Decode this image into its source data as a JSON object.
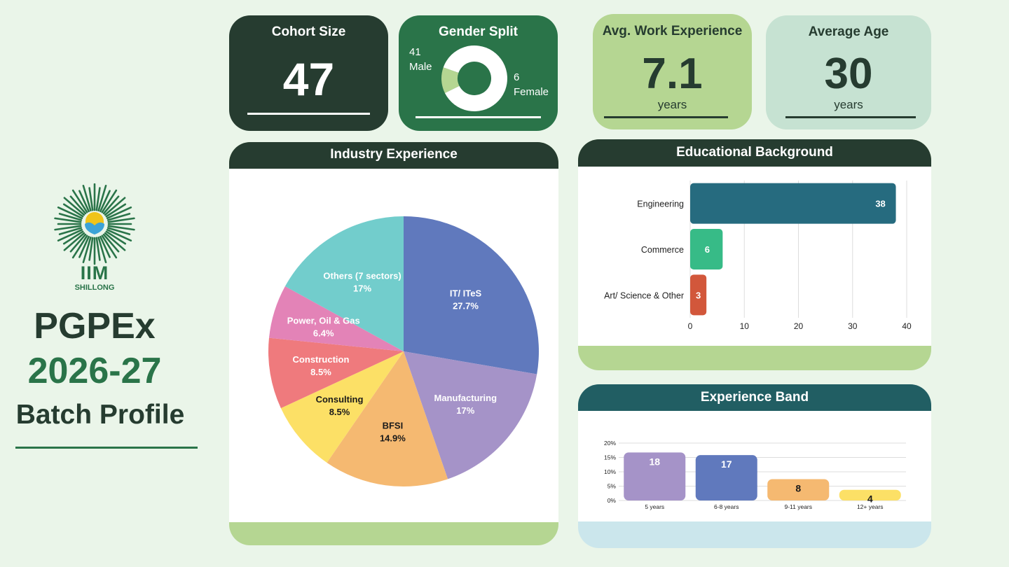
{
  "logo": {
    "name": "IIM",
    "sub": "SHILLONG"
  },
  "program": {
    "name": "PGPEx",
    "year": "2026-27",
    "subtitle": "Batch Profile"
  },
  "cards": {
    "cohort": {
      "title": "Cohort Size",
      "value": "47"
    },
    "gender": {
      "title": "Gender Split",
      "male_count": "41",
      "male_label": "Male",
      "female_count": "6",
      "female_label": "Female"
    },
    "work": {
      "title": "Avg. Work Experience",
      "value": "7.1",
      "unit": "years"
    },
    "age": {
      "title": "Average Age",
      "value": "30",
      "unit": "years"
    }
  },
  "colors": {
    "dark": "#263c30",
    "green": "#2a7449",
    "lime": "#b5d692",
    "mint": "#c6e2d2",
    "teal_dark": "#215e63",
    "bg": "#eaf5e9"
  },
  "chart_data": [
    {
      "type": "pie",
      "id": "gender",
      "categories": [
        "Male",
        "Female"
      ],
      "values": [
        41,
        6
      ],
      "colors": [
        "#ffffff",
        "#b5d692"
      ]
    },
    {
      "type": "pie",
      "id": "industry",
      "title": "Industry Experience",
      "categories": [
        "IT/ ITeS",
        "Manufacturing",
        "BFSI",
        "Consulting",
        "Construction",
        "Power, Oil & Gas",
        "Others (7 sectors)"
      ],
      "values": [
        27.7,
        17,
        14.9,
        8.5,
        8.5,
        6.4,
        17
      ],
      "labels": [
        "27.7%",
        "17%",
        "14.9%",
        "8.5%",
        "8.5%",
        "6.4%",
        "17%"
      ],
      "colors": [
        "#6079bd",
        "#a593c8",
        "#f5b971",
        "#fce066",
        "#ef7a7d",
        "#e383b7",
        "#72cdcc"
      ],
      "label_colors": [
        "#ffffff",
        "#ffffff",
        "#1a1a1a",
        "#1a1a1a",
        "#ffffff",
        "#ffffff",
        "#ffffff"
      ]
    },
    {
      "type": "bar",
      "orientation": "horizontal",
      "id": "education",
      "title": "Educational Background",
      "categories": [
        "Engineering",
        "Commerce",
        "Art/ Science & Other"
      ],
      "values": [
        38,
        6,
        3
      ],
      "colors": [
        "#266b7f",
        "#37bb87",
        "#d2573b"
      ],
      "xlim": [
        0,
        40
      ],
      "xticks": [
        0,
        10,
        20,
        30,
        40
      ],
      "grid": true
    },
    {
      "type": "bar",
      "id": "experience",
      "title": "Experience Band",
      "categories": [
        "5 years",
        "6-8 years",
        "9-11 years",
        "12+ years"
      ],
      "values": [
        18,
        17,
        8,
        4
      ],
      "colors": [
        "#a593c8",
        "#6079bd",
        "#f5b971",
        "#fce066"
      ],
      "label_colors": [
        "#ffffff",
        "#ffffff",
        "#1a1a1a",
        "#1a1a1a"
      ],
      "yticks": [
        "0%",
        "5%",
        "10%",
        "15%",
        "20%"
      ],
      "ylim": [
        0,
        20
      ],
      "grid": true
    }
  ]
}
